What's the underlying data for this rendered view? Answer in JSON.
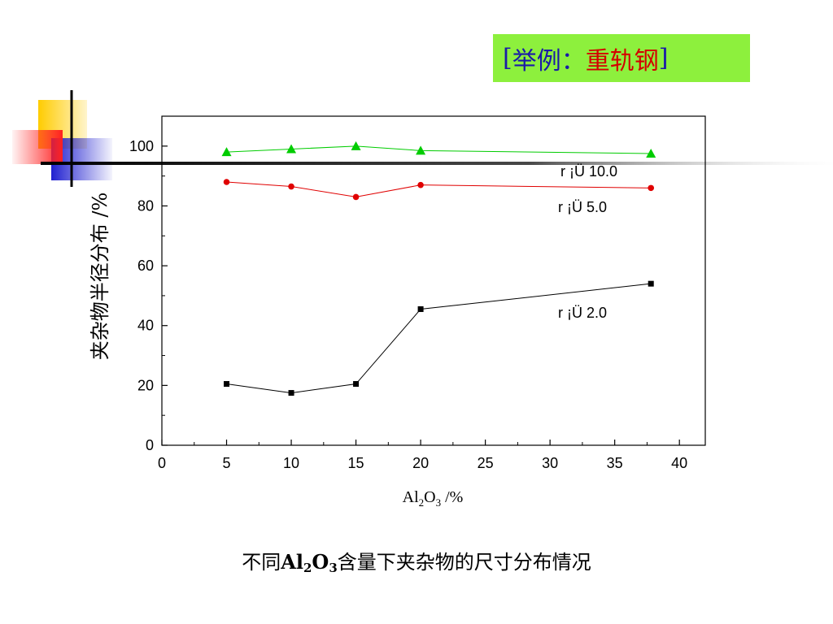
{
  "title_box": {
    "open_bracket": "[",
    "prefix": "举例：",
    "subject": "重轨钢",
    "close_bracket": "]"
  },
  "caption": {
    "part1": "不同",
    "formula_al": "Al",
    "formula_sub1": "2",
    "formula_o": "O",
    "formula_sub2": "3",
    "part2": "含量下夹杂物的尺寸分布情况"
  },
  "chart_data": {
    "type": "line",
    "title": "",
    "xlabel": {
      "base1": "Al",
      "sub1": "2",
      "base2": "O",
      "sub2": "3",
      "unit": " /%"
    },
    "ylabel": "夹杂物半径分布 /%",
    "xlim": [
      0,
      42
    ],
    "ylim": [
      0,
      110
    ],
    "xticks": [
      0,
      5,
      10,
      15,
      20,
      25,
      30,
      35,
      40
    ],
    "yticks": [
      0,
      20,
      40,
      60,
      80,
      100
    ],
    "grid": false,
    "series": [
      {
        "name": "r ¡Ü 10.0",
        "color": "#00cc00",
        "marker": "triangle",
        "x": [
          5,
          10,
          15,
          20,
          37.8
        ],
        "y": [
          98,
          99,
          100,
          98.5,
          97.5
        ]
      },
      {
        "name": "r ¡Ü 5.0",
        "color": "#e00000",
        "marker": "circle",
        "x": [
          5,
          10,
          15,
          20,
          37.8
        ],
        "y": [
          88,
          86.5,
          83,
          87,
          86
        ]
      },
      {
        "name": "r ¡Ü 2.0",
        "color": "#000000",
        "marker": "square",
        "x": [
          5,
          10,
          15,
          20,
          37.8
        ],
        "y": [
          20.5,
          17.5,
          20.5,
          45.5,
          54
        ]
      }
    ]
  }
}
